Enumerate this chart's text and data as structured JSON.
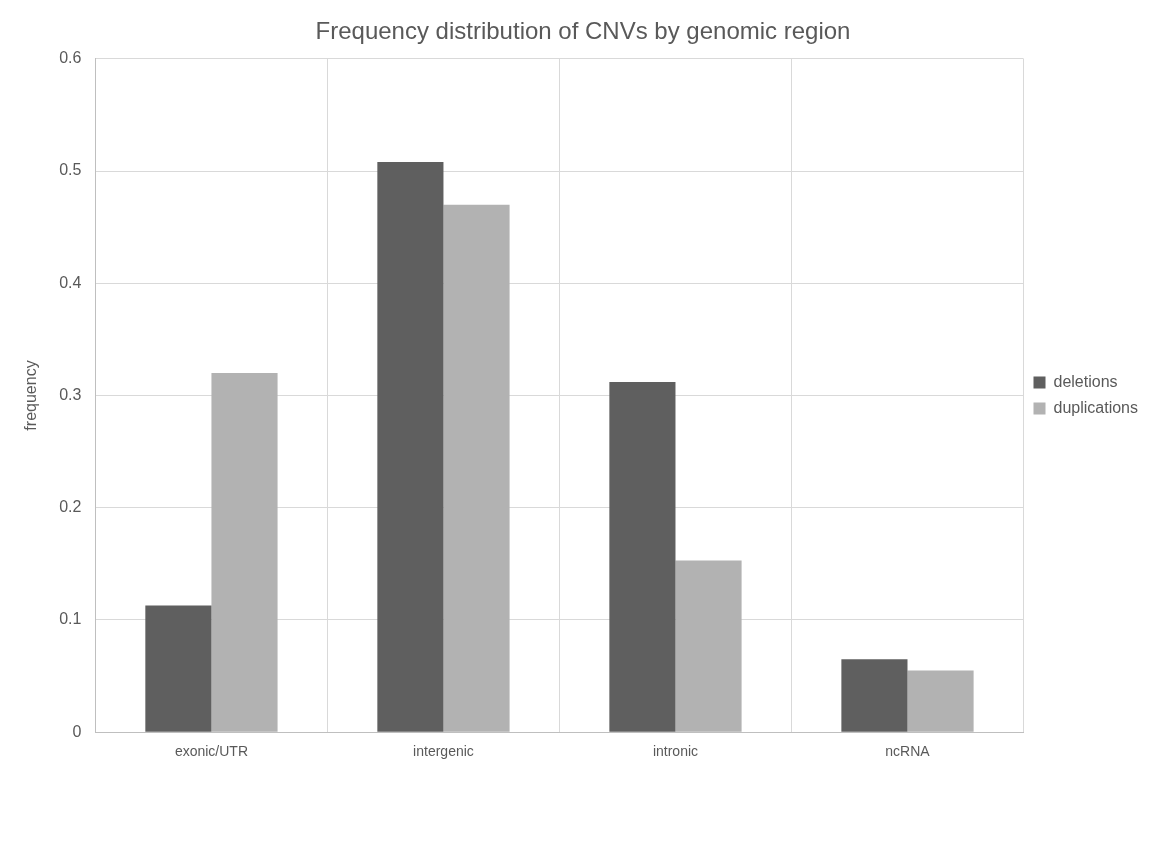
{
  "chart_data": {
    "type": "bar",
    "title": "Frequency distribution of CNVs by genomic region",
    "ylabel": "frequency",
    "categories": [
      "exonic/UTR",
      "intergenic",
      "intronic",
      "ncRNA"
    ],
    "series": [
      {
        "name": "deletions",
        "color": "#5f5f5f",
        "values": [
          0.113,
          0.508,
          0.312,
          0.065
        ]
      },
      {
        "name": "duplications",
        "color": "#b2b2b2",
        "values": [
          0.32,
          0.47,
          0.153,
          0.055
        ]
      }
    ],
    "ylim": [
      0,
      0.6
    ],
    "yticks": [
      0,
      0.1,
      0.2,
      0.3,
      0.4,
      0.5,
      0.6
    ],
    "grid": true,
    "legend": "right"
  }
}
